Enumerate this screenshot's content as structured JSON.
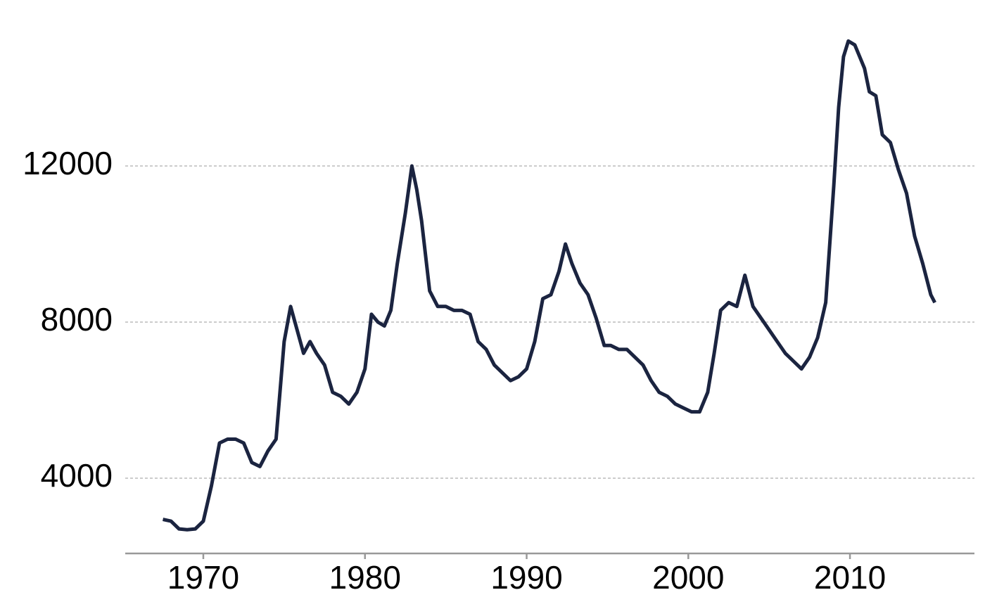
{
  "chart_data": {
    "type": "line",
    "x": [
      1967.5,
      1968,
      1968.5,
      1969,
      1969.5,
      1970,
      1970.5,
      1971,
      1971.5,
      1972,
      1972.5,
      1973,
      1973.5,
      1974,
      1974.5,
      1975,
      1975.4,
      1975.8,
      1976.2,
      1976.6,
      1977,
      1977.5,
      1978,
      1978.5,
      1979,
      1979.5,
      1980,
      1980.4,
      1980.8,
      1981.2,
      1981.6,
      1982,
      1982.5,
      1982.9,
      1983.2,
      1983.5,
      1984,
      1984.5,
      1985,
      1985.5,
      1986,
      1986.5,
      1987,
      1987.5,
      1988,
      1988.5,
      1989,
      1989.5,
      1990,
      1990.5,
      1991,
      1991.5,
      1992,
      1992.4,
      1992.8,
      1993.3,
      1993.8,
      1994.3,
      1994.8,
      1995.2,
      1995.7,
      1996.2,
      1996.7,
      1997.2,
      1997.7,
      1998.2,
      1998.7,
      1999.2,
      1999.7,
      2000.2,
      2000.7,
      2001.2,
      2001.6,
      2002,
      2002.5,
      2003,
      2003.5,
      2004,
      2004.5,
      2005,
      2005.5,
      2006,
      2006.5,
      2007,
      2007.5,
      2008,
      2008.5,
      2009,
      2009.3,
      2009.6,
      2009.9,
      2010.3,
      2010.6,
      2010.9,
      2011.2,
      2011.6,
      2012,
      2012.5,
      2013,
      2013.5,
      2014,
      2014.5,
      2015,
      2015.25
    ],
    "series": [
      {
        "color": "#1b2440",
        "values": [
          2944,
          2900,
          2700,
          2680,
          2700,
          2900,
          3800,
          4900,
          5000,
          5000,
          4900,
          4400,
          4300,
          4700,
          5000,
          7500,
          8400,
          7800,
          7200,
          7500,
          7200,
          6900,
          6200,
          6100,
          5900,
          6200,
          6800,
          8200,
          8000,
          7900,
          8300,
          9500,
          10800,
          12000,
          11400,
          10600,
          8800,
          8400,
          8400,
          8300,
          8300,
          8200,
          7500,
          7300,
          6900,
          6700,
          6500,
          6600,
          6800,
          7500,
          8600,
          8700,
          9300,
          10000,
          9500,
          9000,
          8700,
          8100,
          7400,
          7400,
          7300,
          7300,
          7100,
          6900,
          6500,
          6200,
          6100,
          5900,
          5800,
          5700,
          5700,
          6200,
          7200,
          8300,
          8500,
          8400,
          9200,
          8400,
          8100,
          7800,
          7500,
          7200,
          7000,
          6800,
          7100,
          7600,
          8500,
          11500,
          13500,
          14800,
          15200,
          15100,
          14800,
          14500,
          13900,
          13800,
          12800,
          12600,
          11900,
          11300,
          10200,
          9500,
          8700,
          8500
        ]
      }
    ],
    "xlim": [
      1965.17,
      2017.7
    ],
    "ylim": [
      2072,
      16252
    ],
    "xticks": [
      1970,
      1980,
      1990,
      2000,
      2010
    ],
    "yticks": [
      4000,
      8000,
      12000
    ],
    "grid": true
  }
}
